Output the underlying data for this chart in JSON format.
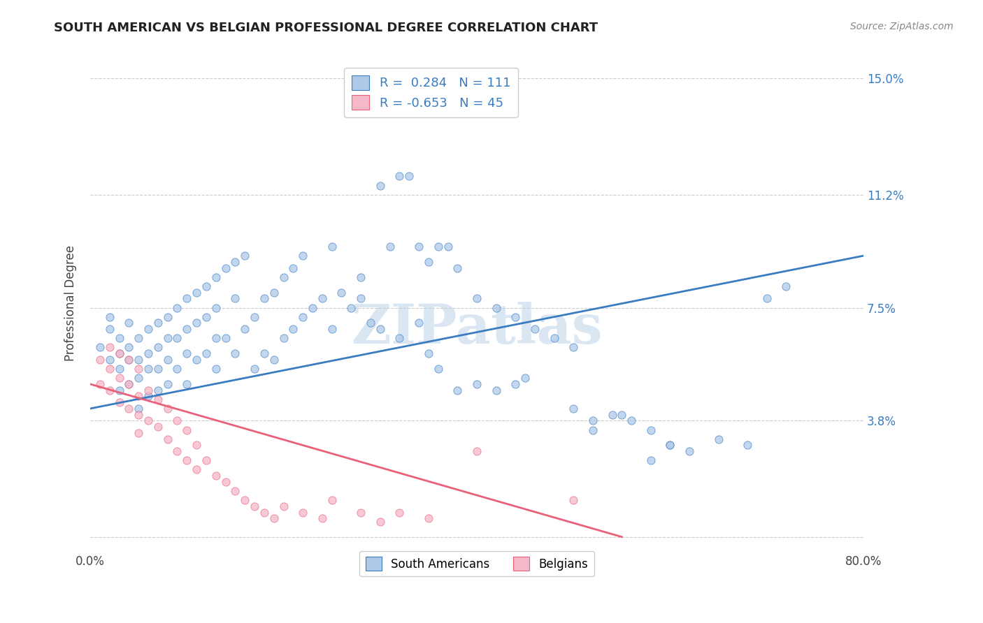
{
  "title": "SOUTH AMERICAN VS BELGIAN PROFESSIONAL DEGREE CORRELATION CHART",
  "source": "Source: ZipAtlas.com",
  "ylabel": "Professional Degree",
  "yticks": [
    0.0,
    0.038,
    0.075,
    0.112,
    0.15
  ],
  "ytick_labels": [
    "",
    "3.8%",
    "7.5%",
    "11.2%",
    "15.0%"
  ],
  "xlim": [
    0.0,
    0.8
  ],
  "ylim": [
    -0.005,
    0.158
  ],
  "blue_R": 0.284,
  "blue_N": 111,
  "pink_R": -0.653,
  "pink_N": 45,
  "blue_color": "#aec9e8",
  "pink_color": "#f5b8c8",
  "line_blue": "#3a7cc1",
  "line_pink": "#e8607a",
  "legend_label_blue": "South Americans",
  "legend_label_pink": "Belgians",
  "watermark": "ZIPatlas",
  "background_color": "#ffffff",
  "scatter_alpha": 0.75,
  "marker_size": 65,
  "blue_scatter_x": [
    0.01,
    0.02,
    0.02,
    0.02,
    0.03,
    0.03,
    0.03,
    0.03,
    0.04,
    0.04,
    0.04,
    0.04,
    0.05,
    0.05,
    0.05,
    0.05,
    0.06,
    0.06,
    0.06,
    0.06,
    0.07,
    0.07,
    0.07,
    0.07,
    0.08,
    0.08,
    0.08,
    0.08,
    0.09,
    0.09,
    0.09,
    0.1,
    0.1,
    0.1,
    0.1,
    0.11,
    0.11,
    0.11,
    0.12,
    0.12,
    0.12,
    0.13,
    0.13,
    0.13,
    0.13,
    0.14,
    0.14,
    0.15,
    0.15,
    0.15,
    0.16,
    0.16,
    0.17,
    0.17,
    0.18,
    0.18,
    0.19,
    0.19,
    0.2,
    0.2,
    0.21,
    0.21,
    0.22,
    0.22,
    0.23,
    0.24,
    0.25,
    0.25,
    0.26,
    0.27,
    0.28,
    0.29,
    0.3,
    0.31,
    0.32,
    0.33,
    0.34,
    0.35,
    0.36,
    0.37,
    0.38,
    0.4,
    0.42,
    0.44,
    0.46,
    0.48,
    0.5,
    0.35,
    0.36,
    0.38,
    0.4,
    0.42,
    0.44,
    0.45,
    0.5,
    0.52,
    0.55,
    0.58,
    0.6,
    0.62,
    0.65,
    0.68,
    0.7,
    0.72,
    0.28,
    0.3,
    0.32,
    0.34,
    0.52,
    0.54,
    0.56,
    0.58,
    0.6
  ],
  "blue_scatter_y": [
    0.062,
    0.068,
    0.058,
    0.072,
    0.065,
    0.055,
    0.06,
    0.048,
    0.07,
    0.058,
    0.062,
    0.05,
    0.065,
    0.058,
    0.052,
    0.042,
    0.068,
    0.06,
    0.055,
    0.046,
    0.07,
    0.062,
    0.055,
    0.048,
    0.072,
    0.065,
    0.058,
    0.05,
    0.075,
    0.065,
    0.055,
    0.078,
    0.068,
    0.06,
    0.05,
    0.08,
    0.07,
    0.058,
    0.082,
    0.072,
    0.06,
    0.085,
    0.075,
    0.065,
    0.055,
    0.088,
    0.065,
    0.09,
    0.078,
    0.06,
    0.092,
    0.068,
    0.072,
    0.055,
    0.078,
    0.06,
    0.08,
    0.058,
    0.085,
    0.065,
    0.088,
    0.068,
    0.092,
    0.072,
    0.075,
    0.078,
    0.095,
    0.068,
    0.08,
    0.075,
    0.078,
    0.07,
    0.115,
    0.095,
    0.118,
    0.118,
    0.095,
    0.09,
    0.095,
    0.095,
    0.088,
    0.078,
    0.075,
    0.072,
    0.068,
    0.065,
    0.062,
    0.06,
    0.055,
    0.048,
    0.05,
    0.048,
    0.05,
    0.052,
    0.042,
    0.038,
    0.04,
    0.035,
    0.03,
    0.028,
    0.032,
    0.03,
    0.078,
    0.082,
    0.085,
    0.068,
    0.065,
    0.07,
    0.035,
    0.04,
    0.038,
    0.025,
    0.03
  ],
  "pink_scatter_x": [
    0.01,
    0.01,
    0.02,
    0.02,
    0.02,
    0.03,
    0.03,
    0.03,
    0.04,
    0.04,
    0.04,
    0.05,
    0.05,
    0.05,
    0.05,
    0.06,
    0.06,
    0.07,
    0.07,
    0.08,
    0.08,
    0.09,
    0.09,
    0.1,
    0.1,
    0.11,
    0.11,
    0.12,
    0.13,
    0.14,
    0.15,
    0.16,
    0.17,
    0.18,
    0.19,
    0.2,
    0.22,
    0.24,
    0.25,
    0.28,
    0.3,
    0.32,
    0.35,
    0.4,
    0.5
  ],
  "pink_scatter_y": [
    0.058,
    0.05,
    0.062,
    0.055,
    0.048,
    0.06,
    0.052,
    0.044,
    0.058,
    0.05,
    0.042,
    0.055,
    0.046,
    0.04,
    0.034,
    0.048,
    0.038,
    0.045,
    0.036,
    0.042,
    0.032,
    0.038,
    0.028,
    0.035,
    0.025,
    0.03,
    0.022,
    0.025,
    0.02,
    0.018,
    0.015,
    0.012,
    0.01,
    0.008,
    0.006,
    0.01,
    0.008,
    0.006,
    0.012,
    0.008,
    0.005,
    0.008,
    0.006,
    0.028,
    0.012
  ],
  "blue_line_x": [
    0.0,
    0.8
  ],
  "blue_line_y": [
    0.042,
    0.092
  ],
  "pink_line_x": [
    0.0,
    0.55
  ],
  "pink_line_y": [
    0.05,
    0.0
  ]
}
